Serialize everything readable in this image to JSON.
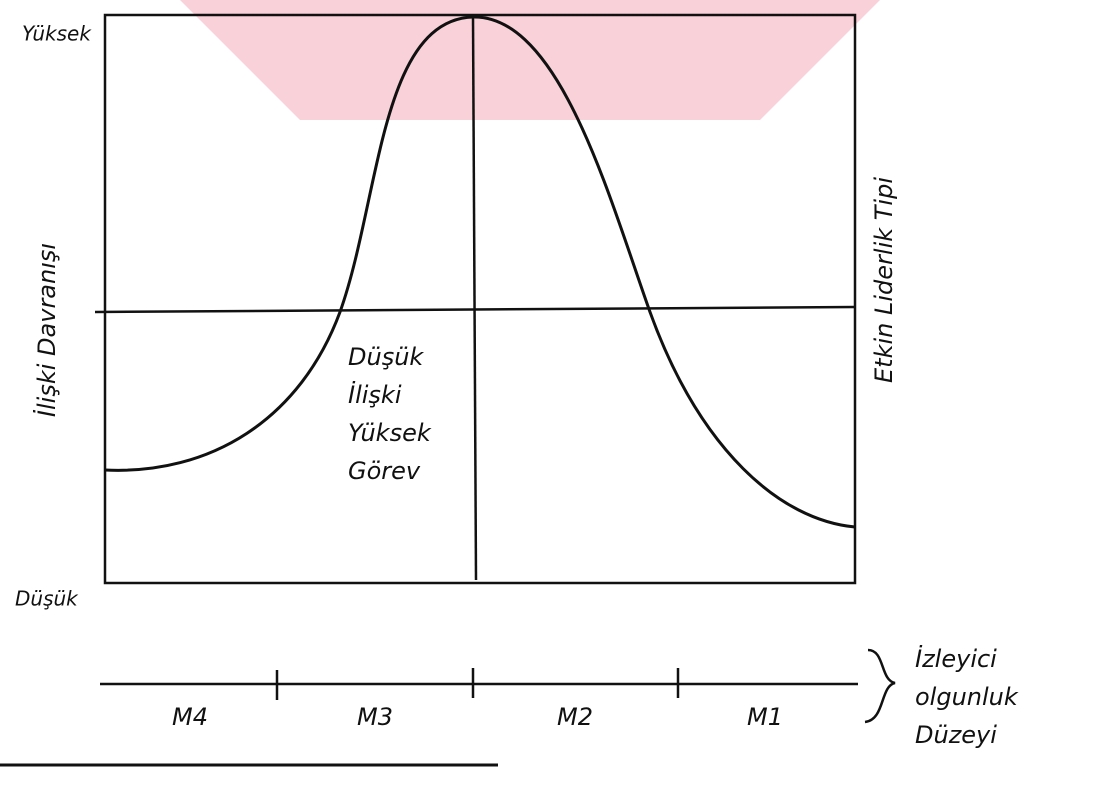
{
  "axis": {
    "high": "Yüksek",
    "low": "Düşük",
    "left_label": "İlişki Davranışı",
    "right_label": "Etkin Liderlik Tipi"
  },
  "quadrant_text": [
    "Düşük",
    "İlişki",
    "Yüksek",
    "Görev"
  ],
  "maturity": {
    "levels": [
      "M4",
      "M3",
      "M2",
      "M1"
    ],
    "label": [
      "İzleyici",
      "olgunluk",
      "Düzeyi"
    ]
  }
}
